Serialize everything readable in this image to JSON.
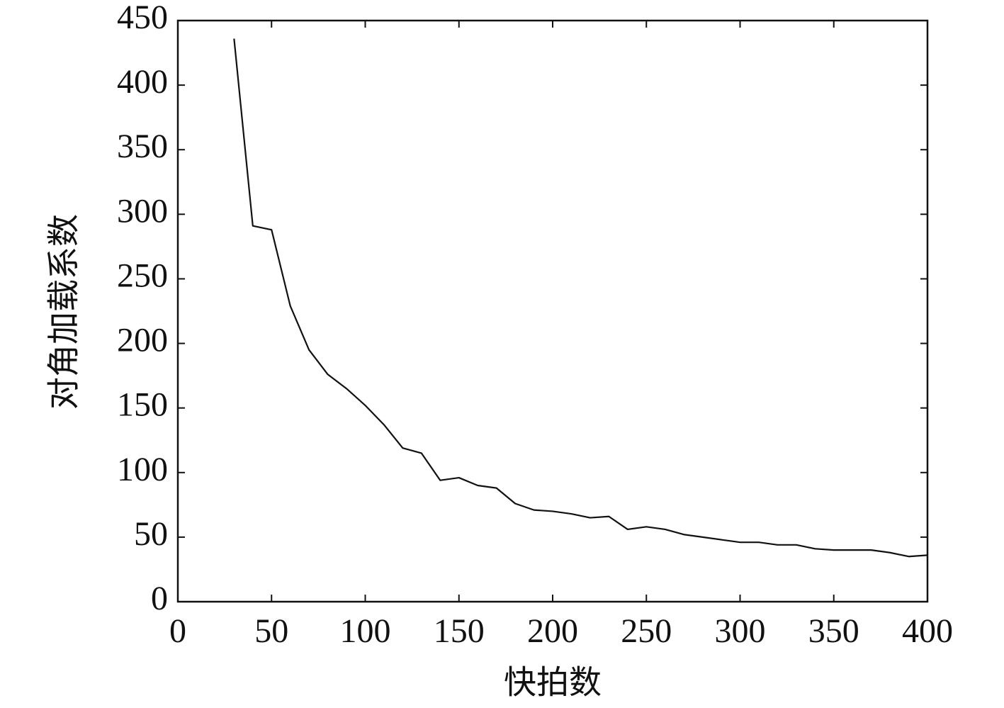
{
  "chart_data": {
    "type": "line",
    "x_label": "快拍数",
    "y_label": "对角加载系数",
    "x": [
      30,
      40,
      50,
      60,
      70,
      80,
      90,
      100,
      110,
      120,
      130,
      140,
      150,
      160,
      170,
      180,
      190,
      200,
      210,
      220,
      230,
      240,
      250,
      260,
      270,
      280,
      290,
      300,
      310,
      320,
      330,
      340,
      350,
      360,
      370,
      380,
      390,
      400
    ],
    "series": [
      {
        "color": "#111111",
        "values": [
          436,
          291,
          288,
          229,
          195,
          176,
          165,
          152,
          137,
          119,
          115,
          94,
          96,
          90,
          88,
          76,
          71,
          70,
          68,
          65,
          66,
          56,
          58,
          56,
          52,
          50,
          48,
          46,
          46,
          44,
          44,
          41,
          40,
          40,
          40,
          38,
          35,
          36
        ]
      }
    ],
    "xlim": [
      0,
      400
    ],
    "ylim": [
      0,
      450
    ],
    "xticks": [
      0,
      50,
      100,
      150,
      200,
      250,
      300,
      350,
      400
    ],
    "yticks": [
      0,
      50,
      100,
      150,
      200,
      250,
      300,
      350,
      400,
      450
    ],
    "grid": false
  }
}
